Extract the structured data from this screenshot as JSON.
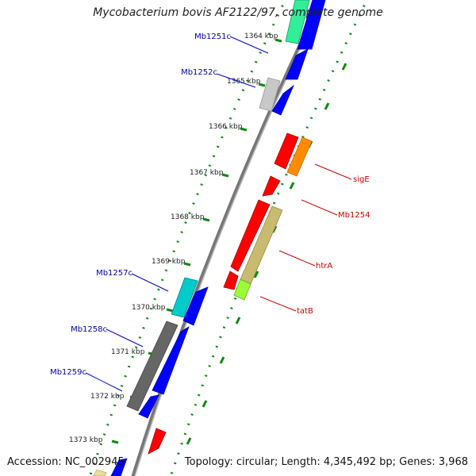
{
  "title": "Mycobacterium bovis AF2122/97, complete genome",
  "footer": {
    "accession": "Accession: NC_002945",
    "summary": "Topology: circular; Length: 4,345,492 bp; Genes: 3,968"
  },
  "ticks": [
    {
      "label": "1364 kbp",
      "position_kbp": 1364
    },
    {
      "label": "1365 kbp",
      "position_kbp": 1365
    },
    {
      "label": "1366 kbp",
      "position_kbp": 1366
    },
    {
      "label": "1367 kbp",
      "position_kbp": 1367
    },
    {
      "label": "1368 kbp",
      "position_kbp": 1368
    },
    {
      "label": "1369 kbp",
      "position_kbp": 1369
    },
    {
      "label": "1370 kbp",
      "position_kbp": 1370
    },
    {
      "label": "1371 kbp",
      "position_kbp": 1371
    },
    {
      "label": "1372 kbp",
      "position_kbp": 1372
    },
    {
      "label": "1373 kbp",
      "position_kbp": 1373
    }
  ],
  "gene_labels": {
    "reverse": [
      {
        "name": "Mb1251c",
        "color": "#0000aa"
      },
      {
        "name": "Mb1252c",
        "color": "#0000aa"
      },
      {
        "name": "Mb1257c",
        "color": "#0000aa"
      },
      {
        "name": "Mb1258c",
        "color": "#0000aa"
      },
      {
        "name": "Mb1259c",
        "color": "#0000aa"
      }
    ],
    "forward": [
      {
        "name": "sigE",
        "color": "#cc0000"
      },
      {
        "name": "Mb1254",
        "color": "#cc0000"
      },
      {
        "name": "htrA",
        "color": "#cc0000"
      },
      {
        "name": "tatB",
        "color": "#cc0000"
      }
    ]
  },
  "colors": {
    "forward_cds": "#ff0000",
    "reverse_cds": "#0000ff",
    "backbone": "#888888",
    "tick_marks": "#118811",
    "sigE": "#ff8c00",
    "htrA": "#c8bb70",
    "tatB": "#99ff33",
    "Mb1251c": "#33ee99",
    "Mb1252c": "#c8c8c8",
    "Mb1257c": "#00cccc",
    "Mb1258c": "#666666",
    "Mb1259c": "#666666",
    "partial_bottom": "#eedd99"
  }
}
